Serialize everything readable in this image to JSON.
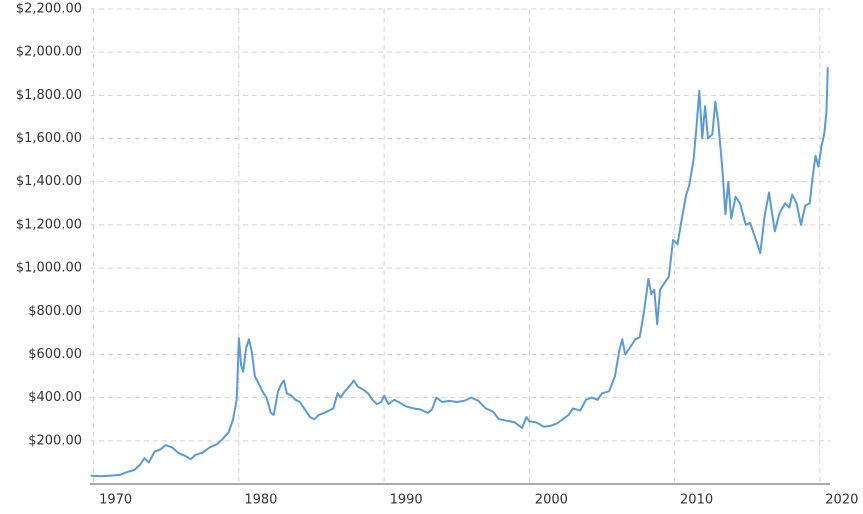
{
  "chart_data": {
    "type": "line",
    "x": [
      1969.8,
      1970.5,
      1971.2,
      1971.8,
      1972.3,
      1972.8,
      1973.2,
      1973.5,
      1973.8,
      1974.2,
      1974.6,
      1974.95,
      1975.4,
      1975.8,
      1976.3,
      1976.7,
      1977.0,
      1977.5,
      1978.0,
      1978.5,
      1978.9,
      1979.3,
      1979.6,
      1979.85,
      1980.0,
      1980.15,
      1980.3,
      1980.5,
      1980.7,
      1980.9,
      1981.1,
      1981.4,
      1981.7,
      1981.9,
      1982.2,
      1982.4,
      1982.7,
      1982.9,
      1983.1,
      1983.3,
      1983.6,
      1983.9,
      1984.2,
      1984.5,
      1984.9,
      1985.2,
      1985.5,
      1985.9,
      1986.2,
      1986.5,
      1986.8,
      1987.0,
      1987.3,
      1987.7,
      1987.9,
      1988.2,
      1988.5,
      1988.9,
      1989.2,
      1989.5,
      1989.8,
      1990.0,
      1990.3,
      1990.7,
      1991.0,
      1991.5,
      1992.0,
      1992.5,
      1993.0,
      1993.3,
      1993.6,
      1994.0,
      1994.5,
      1995.0,
      1995.5,
      1996.0,
      1996.5,
      1997.0,
      1997.5,
      1997.9,
      1998.3,
      1998.7,
      1999.0,
      1999.5,
      1999.8,
      2000.0,
      2000.5,
      2001.0,
      2001.5,
      2001.9,
      2002.3,
      2002.7,
      2003.0,
      2003.5,
      2003.9,
      2004.3,
      2004.7,
      2005.0,
      2005.5,
      2005.9,
      2006.2,
      2006.4,
      2006.6,
      2006.9,
      2007.3,
      2007.6,
      2007.9,
      2008.2,
      2008.4,
      2008.6,
      2008.8,
      2009.0,
      2009.3,
      2009.6,
      2009.9,
      2010.2,
      2010.5,
      2010.8,
      2011.0,
      2011.3,
      2011.5,
      2011.7,
      2011.9,
      2012.1,
      2012.3,
      2012.6,
      2012.8,
      2013.0,
      2013.3,
      2013.5,
      2013.7,
      2013.9,
      2014.2,
      2014.5,
      2014.9,
      2015.2,
      2015.5,
      2015.9,
      2016.2,
      2016.5,
      2016.9,
      2017.2,
      2017.6,
      2017.9,
      2018.1,
      2018.4,
      2018.7,
      2019.0,
      2019.3,
      2019.5,
      2019.7,
      2019.9,
      2020.1,
      2020.3,
      2020.45,
      2020.55
    ],
    "series": [
      {
        "color": "#5b9bd5",
        "values": [
          38,
          36,
          39,
          42,
          55,
          65,
          90,
          120,
          100,
          150,
          160,
          180,
          170,
          145,
          130,
          115,
          135,
          145,
          170,
          185,
          210,
          240,
          300,
          390,
          675,
          550,
          520,
          630,
          670,
          610,
          500,
          460,
          420,
          400,
          330,
          320,
          430,
          460,
          480,
          420,
          410,
          390,
          380,
          350,
          310,
          300,
          320,
          330,
          340,
          350,
          420,
          400,
          430,
          460,
          480,
          450,
          440,
          420,
          390,
          370,
          380,
          410,
          370,
          390,
          380,
          360,
          350,
          345,
          330,
          345,
          400,
          380,
          385,
          380,
          385,
          400,
          385,
          350,
          335,
          300,
          295,
          290,
          285,
          260,
          310,
          290,
          285,
          265,
          270,
          280,
          300,
          320,
          350,
          340,
          390,
          400,
          390,
          420,
          430,
          500,
          620,
          670,
          600,
          630,
          670,
          680,
          800,
          950,
          880,
          900,
          740,
          900,
          930,
          960,
          1130,
          1110,
          1230,
          1340,
          1380,
          1500,
          1650,
          1820,
          1600,
          1750,
          1600,
          1620,
          1770,
          1680,
          1450,
          1250,
          1400,
          1230,
          1330,
          1300,
          1200,
          1210,
          1150,
          1070,
          1240,
          1350,
          1170,
          1250,
          1300,
          1280,
          1340,
          1300,
          1200,
          1290,
          1300,
          1420,
          1520,
          1470,
          1560,
          1620,
          1720,
          1930
        ]
      }
    ],
    "xlim": [
      1969.75,
      2020.7
    ],
    "xticks": [
      1970,
      1980,
      1990,
      2000,
      2010,
      2020
    ],
    "ylim": [
      0,
      2200
    ],
    "yticks": [
      {
        "value": 200,
        "label": "$200.00"
      },
      {
        "value": 400,
        "label": "$400.00"
      },
      {
        "value": 600,
        "label": "$600.00"
      },
      {
        "value": 800,
        "label": "$800.00"
      },
      {
        "value": 1000,
        "label": "$1,000.00"
      },
      {
        "value": 1200,
        "label": "$1,200.00"
      },
      {
        "value": 1400,
        "label": "$1,400.00"
      },
      {
        "value": 1600,
        "label": "$1,600.00"
      },
      {
        "value": 1800,
        "label": "$1,800.00"
      },
      {
        "value": 2000,
        "label": "$2,000.00"
      },
      {
        "value": 2200,
        "label": "$2,200.00"
      }
    ],
    "grid": true
  }
}
